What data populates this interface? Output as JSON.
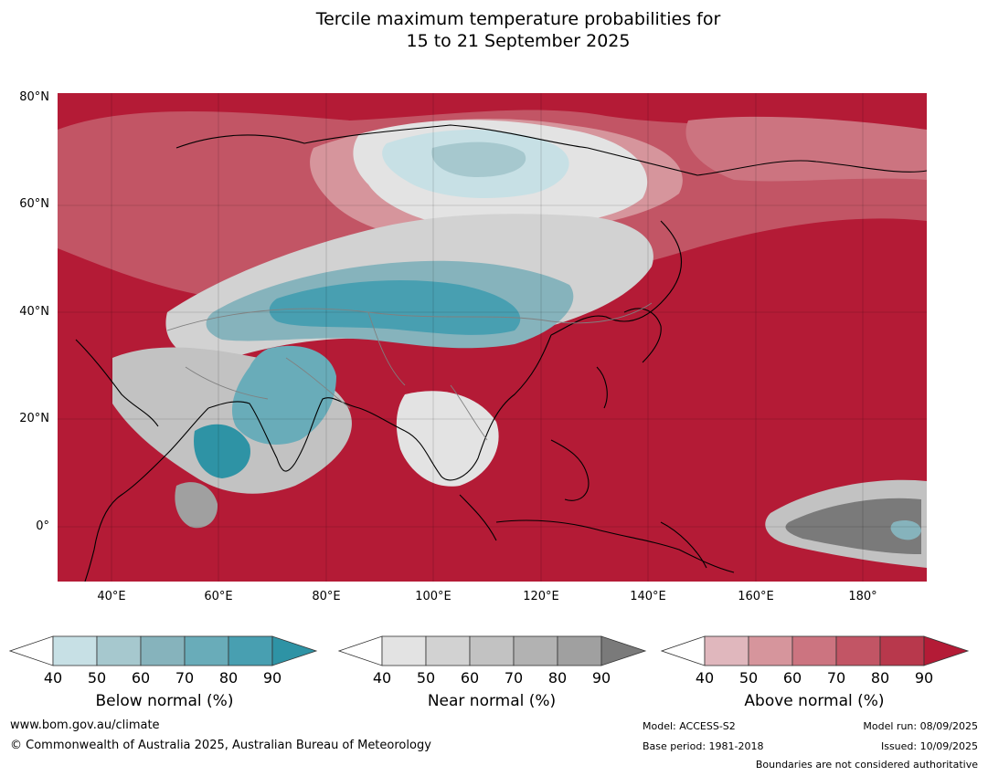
{
  "title": {
    "line1": "Tercile maximum temperature probabilities for",
    "line2": "15 to 21 September 2025"
  },
  "map": {
    "lat_labels": [
      "80°N",
      "60°N",
      "40°N",
      "20°N",
      "0°"
    ],
    "lon_labels": [
      "40°E",
      "60°E",
      "80°E",
      "100°E",
      "120°E",
      "140°E",
      "160°E",
      "180°"
    ],
    "lat_range": [
      -10,
      80
    ],
    "lon_range": [
      30,
      192
    ],
    "dominant_category": "Above normal",
    "ocean_color": "#b41b36"
  },
  "legends": {
    "tick_labels": [
      "40",
      "50",
      "60",
      "70",
      "80",
      "90"
    ],
    "below": {
      "title": "Below normal (%)",
      "colors": [
        "#ffffff",
        "#c7e0e5",
        "#a6c8ce",
        "#86b3bc",
        "#69acb9",
        "#489fb1",
        "#2e93a5"
      ]
    },
    "near": {
      "title": "Near normal (%)",
      "colors": [
        "#ffffff",
        "#e3e3e3",
        "#d2d2d2",
        "#c2c2c2",
        "#b2b2b2",
        "#a0a0a0",
        "#7a7a7a"
      ]
    },
    "above": {
      "title": "Above normal (%)",
      "colors": [
        "#ffffff",
        "#e0b7bd",
        "#d6959c",
        "#cc7480",
        "#c25565",
        "#b8384c",
        "#b41b36"
      ]
    }
  },
  "footer": {
    "website": "www.bom.gov.au/climate",
    "copyright": "© Commonwealth of Australia 2025, Australian Bureau of Meteorology",
    "model": "Model: ACCESS-S2",
    "base_period": "Base period: 1981-2018",
    "model_run": "Model run: 08/09/2025",
    "issued": "Issued: 10/09/2025",
    "disclaimer": "Boundaries are not considered authoritative"
  }
}
